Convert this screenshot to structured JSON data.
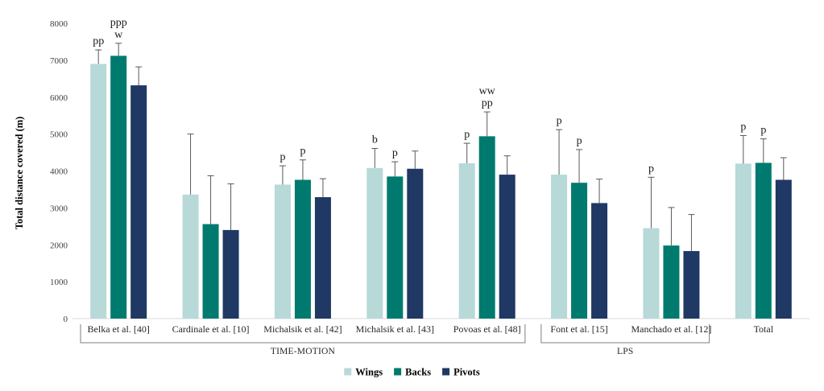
{
  "chart_data": {
    "type": "bar",
    "ylabel": "Total distance covered (m)",
    "ylim": [
      0,
      8000
    ],
    "yticks": [
      0,
      1000,
      2000,
      3000,
      4000,
      5000,
      6000,
      7000,
      8000
    ],
    "categories": [
      "Belka et al. [40]",
      "Cardinale et al. [10]",
      "Michalsik et al. [42]",
      "Michalsik et al. [43]",
      "Povoas et al. [48]",
      "Font et al. [15]",
      "Manchado et al. [12]",
      "Total"
    ],
    "series": [
      {
        "name": "Wings",
        "color": "#b7d9d8",
        "values": [
          6900,
          3360,
          3630,
          4080,
          4210,
          3900,
          2450,
          4200
        ],
        "errors": [
          380,
          1640,
          510,
          530,
          540,
          1220,
          1380,
          760
        ],
        "annotations": [
          "pp",
          "",
          "p",
          "b",
          "p",
          "p",
          "p",
          "p"
        ]
      },
      {
        "name": "Backs",
        "color": "#007a6e",
        "values": [
          7120,
          2560,
          3760,
          3850,
          4940,
          3680,
          1980,
          4220
        ],
        "errors": [
          340,
          1310,
          540,
          400,
          660,
          900,
          1030,
          650
        ],
        "annotations": [
          "ppp\nw",
          "",
          "p",
          "p",
          "ww\npp",
          "p",
          "",
          "p"
        ]
      },
      {
        "name": "Pivots",
        "color": "#1f3864",
        "values": [
          6320,
          2400,
          3290,
          4060,
          3900,
          3130,
          1830,
          3760
        ],
        "errors": [
          500,
          1250,
          500,
          480,
          510,
          650,
          990,
          600
        ],
        "annotations": [
          "",
          "",
          "",
          "",
          "",
          "",
          "",
          ""
        ]
      }
    ],
    "groups": [
      {
        "label": "TIME-MOTION",
        "from": 0,
        "to": 4
      },
      {
        "label": "LPS",
        "from": 5,
        "to": 6
      }
    ],
    "legend": {
      "position": "bottom-center"
    }
  }
}
